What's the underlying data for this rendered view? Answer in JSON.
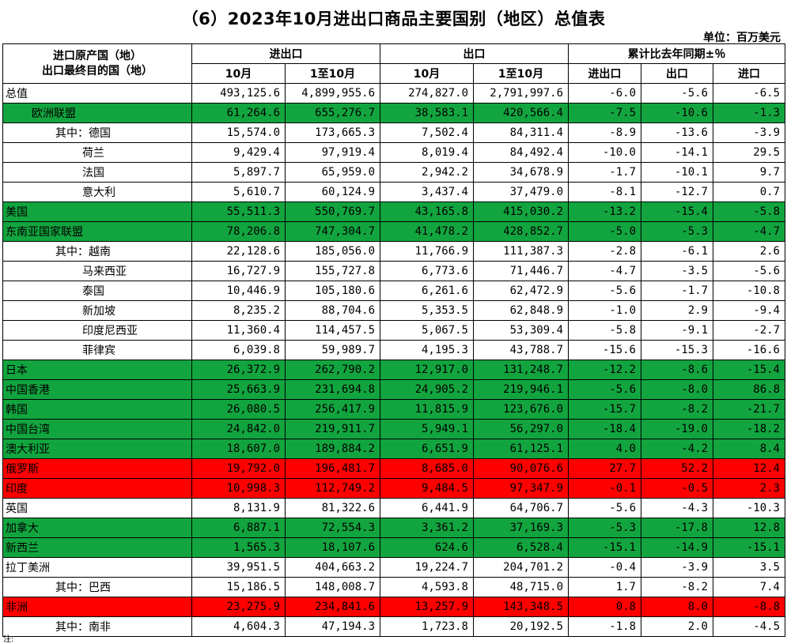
{
  "title": "（6）2023年10月进出口商品主要国别（地区）总值表",
  "unit": "单位：百万美元",
  "header": {
    "corner_line1": "进口原产国（地）",
    "corner_line2": "出口最终目的国（地）",
    "group_total": "进出口",
    "group_export": "出口",
    "group_growth": "累计比去年同期±％",
    "col_oct": "10月",
    "col_jan_oct": "1至10月",
    "col_growth_total": "进出口",
    "col_growth_export": "出口",
    "col_growth_import": "进口"
  },
  "rows": [
    {
      "name": "总值",
      "level": 0,
      "color": "white",
      "v": [
        "493,125.6",
        "4,899,955.6",
        "274,827.0",
        "2,791,997.6",
        "-6.0",
        "-5.6",
        "-6.5"
      ]
    },
    {
      "name": "欧洲联盟",
      "level": 1,
      "color": "green",
      "v": [
        "61,264.6",
        "655,276.7",
        "38,583.1",
        "420,566.4",
        "-7.5",
        "-10.6",
        "-1.3"
      ]
    },
    {
      "name": "其中：德国",
      "level": 2,
      "color": "white",
      "v": [
        "15,574.0",
        "173,665.3",
        "7,502.4",
        "84,311.4",
        "-8.9",
        "-13.6",
        "-3.9"
      ]
    },
    {
      "name": "荷兰",
      "level": 3,
      "color": "white",
      "v": [
        "9,429.4",
        "97,919.4",
        "8,019.4",
        "84,492.4",
        "-10.0",
        "-14.1",
        "29.5"
      ]
    },
    {
      "name": "法国",
      "level": 3,
      "color": "white",
      "v": [
        "5,897.7",
        "65,959.0",
        "2,942.2",
        "34,678.9",
        "-1.7",
        "-10.1",
        "9.7"
      ]
    },
    {
      "name": "意大利",
      "level": 3,
      "color": "white",
      "v": [
        "5,610.7",
        "60,124.9",
        "3,437.4",
        "37,479.0",
        "-8.1",
        "-12.7",
        "0.7"
      ]
    },
    {
      "name": "美国",
      "level": 0,
      "color": "green",
      "v": [
        "55,511.3",
        "550,769.7",
        "43,165.8",
        "415,030.2",
        "-13.2",
        "-15.4",
        "-5.8"
      ]
    },
    {
      "name": "东南亚国家联盟",
      "level": 0,
      "color": "green",
      "v": [
        "78,206.8",
        "747,304.7",
        "41,478.2",
        "428,852.7",
        "-5.0",
        "-5.3",
        "-4.7"
      ]
    },
    {
      "name": "其中：越南",
      "level": 2,
      "color": "white",
      "v": [
        "22,128.6",
        "185,056.0",
        "11,766.9",
        "111,387.3",
        "-2.8",
        "-6.1",
        "2.6"
      ]
    },
    {
      "name": "马来西亚",
      "level": 3,
      "color": "white",
      "v": [
        "16,727.9",
        "155,727.8",
        "6,773.6",
        "71,446.7",
        "-4.7",
        "-3.5",
        "-5.6"
      ]
    },
    {
      "name": "泰国",
      "level": 3,
      "color": "white",
      "v": [
        "10,446.9",
        "105,180.6",
        "6,261.6",
        "62,472.9",
        "-5.6",
        "-1.7",
        "-10.8"
      ]
    },
    {
      "name": "新加坡",
      "level": 3,
      "color": "white",
      "v": [
        "8,235.2",
        "88,704.6",
        "5,353.5",
        "62,848.9",
        "-1.0",
        "2.9",
        "-9.4"
      ]
    },
    {
      "name": "印度尼西亚",
      "level": 3,
      "color": "white",
      "v": [
        "11,360.4",
        "114,457.5",
        "5,067.5",
        "53,309.4",
        "-5.8",
        "-9.1",
        "-2.7"
      ]
    },
    {
      "name": "菲律宾",
      "level": 3,
      "color": "white",
      "v": [
        "6,039.8",
        "59,989.7",
        "4,195.3",
        "43,788.7",
        "-15.6",
        "-15.3",
        "-16.6"
      ]
    },
    {
      "name": "日本",
      "level": 0,
      "color": "green",
      "v": [
        "26,372.9",
        "262,790.2",
        "12,917.0",
        "131,248.7",
        "-12.2",
        "-8.6",
        "-15.4"
      ]
    },
    {
      "name": "中国香港",
      "level": 0,
      "color": "green",
      "v": [
        "25,663.9",
        "231,694.8",
        "24,905.2",
        "219,946.1",
        "-5.6",
        "-8.0",
        "86.8"
      ]
    },
    {
      "name": "韩国",
      "level": 0,
      "color": "green",
      "v": [
        "26,080.5",
        "256,417.9",
        "11,815.9",
        "123,676.0",
        "-15.7",
        "-8.2",
        "-21.7"
      ]
    },
    {
      "name": "中国台湾",
      "level": 0,
      "color": "green",
      "v": [
        "24,842.0",
        "219,911.7",
        "5,949.1",
        "56,297.0",
        "-18.4",
        "-19.0",
        "-18.2"
      ]
    },
    {
      "name": "澳大利亚",
      "level": 0,
      "color": "green",
      "v": [
        "18,607.0",
        "189,884.2",
        "6,651.9",
        "61,125.1",
        "4.0",
        "-4.2",
        "8.4"
      ]
    },
    {
      "name": "俄罗斯",
      "level": 0,
      "color": "red",
      "v": [
        "19,792.0",
        "196,481.7",
        "8,685.0",
        "90,076.6",
        "27.7",
        "52.2",
        "12.4"
      ]
    },
    {
      "name": "印度",
      "level": 0,
      "color": "red",
      "v": [
        "10,998.3",
        "112,749.2",
        "9,484.5",
        "97,347.9",
        "-0.1",
        "-0.5",
        "2.3"
      ]
    },
    {
      "name": "英国",
      "level": 0,
      "color": "white",
      "v": [
        "8,131.9",
        "81,322.6",
        "6,441.9",
        "64,706.7",
        "-5.6",
        "-4.3",
        "-10.3"
      ]
    },
    {
      "name": "加拿大",
      "level": 0,
      "color": "green",
      "v": [
        "6,887.1",
        "72,554.3",
        "3,361.2",
        "37,169.3",
        "-5.3",
        "-17.8",
        "12.8"
      ]
    },
    {
      "name": "新西兰",
      "level": 0,
      "color": "green",
      "v": [
        "1,565.3",
        "18,107.6",
        "624.6",
        "6,528.4",
        "-15.1",
        "-14.9",
        "-15.1"
      ]
    },
    {
      "name": "拉丁美洲",
      "level": 0,
      "color": "white",
      "v": [
        "39,951.5",
        "404,663.2",
        "19,224.7",
        "204,701.2",
        "-0.4",
        "-3.9",
        "3.5"
      ]
    },
    {
      "name": "其中：巴西",
      "level": 2,
      "color": "white",
      "v": [
        "15,186.5",
        "148,008.7",
        "4,593.8",
        "48,715.0",
        "1.7",
        "-8.2",
        "7.4"
      ]
    },
    {
      "name": "非洲",
      "level": 0,
      "color": "red",
      "v": [
        "23,275.9",
        "234,841.6",
        "13,257.9",
        "143,348.5",
        "0.8",
        "8.0",
        "-8.8"
      ]
    },
    {
      "name": "其中：南非",
      "level": 2,
      "color": "white",
      "v": [
        "4,604.3",
        "47,194.3",
        "1,723.8",
        "20,192.5",
        "-1.8",
        "2.0",
        "-4.5"
      ]
    }
  ],
  "colors": {
    "green": "#12a53f",
    "red": "#fe0000",
    "white": "#ffffff"
  }
}
